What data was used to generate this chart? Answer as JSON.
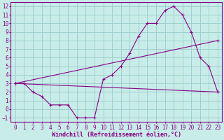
{
  "xlabel": "Windchill (Refroidissement éolien,°C)",
  "bg_color": "#c8ece8",
  "line_color": "#880088",
  "grid_color": "#99cccc",
  "xlim": [
    -0.5,
    23.5
  ],
  "ylim": [
    -1.5,
    12.5
  ],
  "xticks": [
    0,
    1,
    2,
    3,
    4,
    5,
    6,
    7,
    8,
    9,
    10,
    11,
    12,
    13,
    14,
    15,
    16,
    17,
    18,
    19,
    20,
    21,
    22,
    23
  ],
  "yticks": [
    -1,
    0,
    1,
    2,
    3,
    4,
    5,
    6,
    7,
    8,
    9,
    10,
    11,
    12
  ],
  "line1_x": [
    0,
    1,
    2,
    3,
    4,
    5,
    6,
    7,
    8,
    9,
    10,
    11,
    12,
    13,
    14,
    15,
    16,
    17,
    18,
    19,
    20,
    21,
    22,
    23
  ],
  "line1_y": [
    3,
    3,
    2,
    1.5,
    0.5,
    0.5,
    0.5,
    -1,
    -1,
    -1,
    3.5,
    4,
    5,
    6.5,
    8.5,
    10,
    10,
    11.5,
    12,
    11,
    9,
    6,
    5,
    2
  ],
  "line2_x": [
    0,
    23
  ],
  "line2_y": [
    3,
    2
  ],
  "line3_x": [
    0,
    23
  ],
  "line3_y": [
    3,
    8
  ],
  "font_family": "monospace",
  "xlabel_fontsize": 6,
  "tick_fontsize": 5.5
}
